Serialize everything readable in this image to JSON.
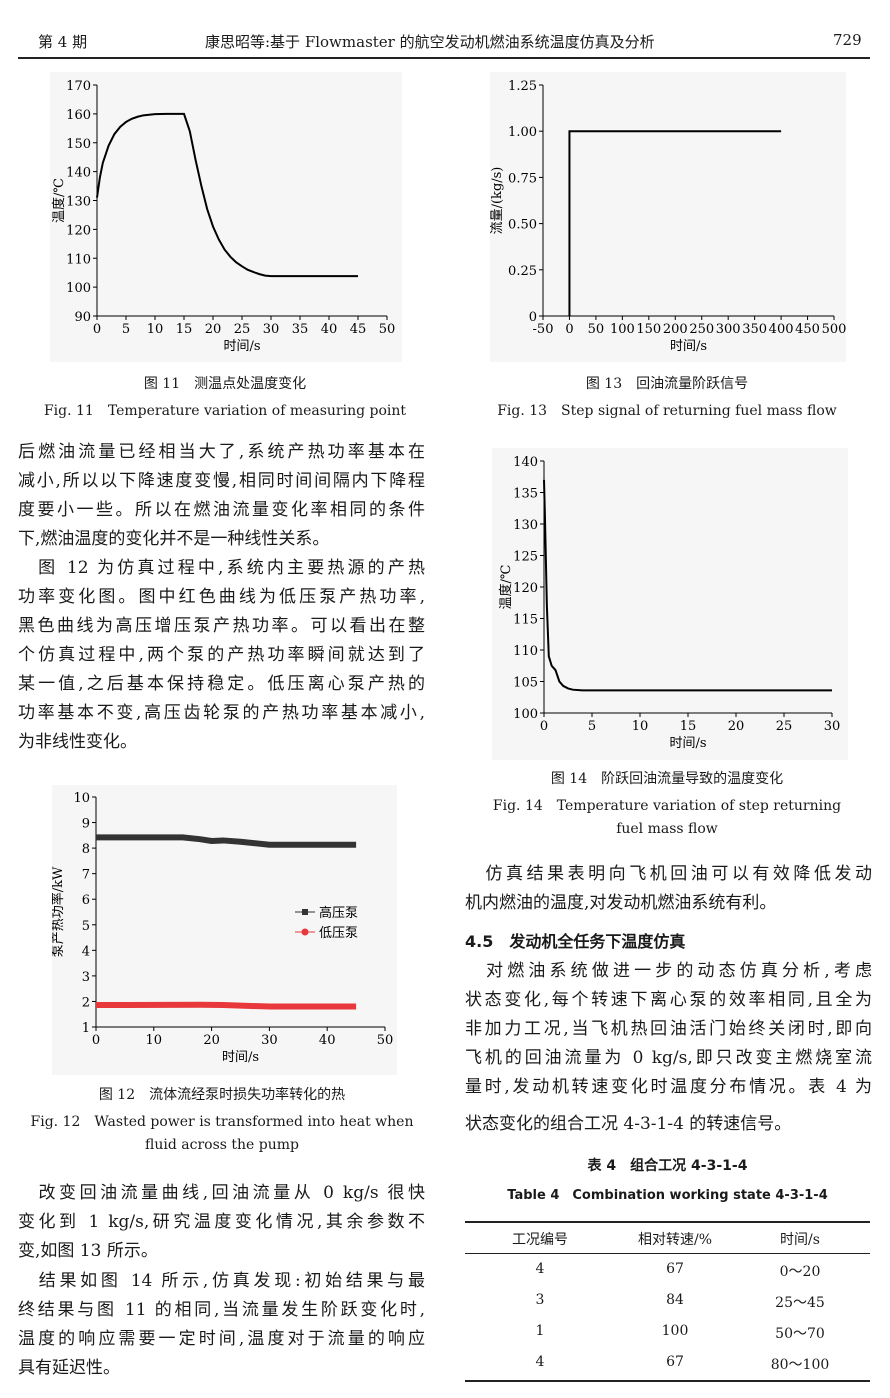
{
  "header": {
    "issue": "第 4 期",
    "title": "康思昭等:基于 Flowmaster 的航空发动机燃油系统温度仿真及分析",
    "page": "729"
  },
  "figures": {
    "fig11": {
      "cap_cn": "图 11　测温点处温度变化",
      "cap_en": "Fig. 11　Temperature variation of measuring point"
    },
    "fig13": {
      "cap_cn": "图 13　回油流量阶跃信号",
      "cap_en": "Fig. 13　Step signal of returning fuel mass flow"
    },
    "fig14": {
      "cap_cn": "图 14　阶跃回油流量导致的温度变化",
      "cap_en1": "Fig. 14　Temperature variation of step returning",
      "cap_en2": "fuel mass flow"
    },
    "fig12": {
      "cap_cn": "图 12　流体流经泵时损失功率转化的热",
      "cap_en1": "Fig. 12　Wasted power is transformed into heat when",
      "cap_en2": "fluid across the pump"
    }
  },
  "left_text1": [
    "后燃油流量已经相当大了,系统产热功率基本在",
    "减小,所以以下降速度变慢,相同时间间隔内下降程",
    "度要小一些。所以在燃油流量变化率相同的条件",
    "下,燃油温度的变化并不是一种线性关系。",
    "　图 12 为仿真过程中,系统内主要热源的产热",
    "功率变化图。图中红色曲线为低压泵产热功率,",
    "黑色曲线为高压增压泵产热功率。可以看出在整",
    "个仿真过程中,两个泵的产热功率瞬间就达到了",
    "某一值,之后基本保持稳定。低压离心泵产热的",
    "功率基本不变,高压齿轮泵的产热功率基本减小,",
    "为非线性变化。"
  ],
  "left_text2": [
    "　改变回油流量曲线,回油流量从 0 kg/s 很快",
    "变化到 1 kg/s,研究温度变化情况,其余参数不",
    "变,如图 13 所示。",
    "　结果如图 14 所示,仿真发现:初始结果与最",
    "终结果与图 11 的相同,当流量发生阶跃变化时,",
    "温度的响应需要一定时间,温度对于流量的响应",
    "具有延迟性。"
  ],
  "right_text1": [
    "　仿真结果表明向飞机回油可以有效降低发动",
    "机内燃油的温度,对发动机燃油系统有利。"
  ],
  "section_heading": "4.5　发动机全任务下温度仿真",
  "right_text2": [
    "　对燃油系统做进一步的动态仿真分析,考虑",
    "状态变化,每个转速下离心泵的效率相同,且全为",
    "非加力工况,当飞机热回油活门始终关闭时,即向",
    "飞机的回油流量为 0 kg/s,即只改变主燃烧室流",
    "量时,发动机转速变化时温度分布情况。表 4 为",
    "状态变化的组合工况 4-3-1-4 的转速信号。"
  ],
  "table": {
    "cap_cn": "表 4　组合工况 4-3-1-4",
    "cap_en": "Table 4　Combination working state 4-3-1-4",
    "headers": [
      "工况编号",
      "相对转速/%",
      "时间/s"
    ],
    "rows": [
      [
        "4",
        "67",
        "0～20"
      ],
      [
        "3",
        "84",
        "25～45"
      ],
      [
        "1",
        "100",
        "50～70"
      ],
      [
        "4",
        "67",
        "80～100"
      ]
    ]
  },
  "chart_data": [
    {
      "id": "fig11",
      "type": "line",
      "xlabel": "时间/s",
      "ylabel": "温度/℃",
      "xlim": [
        0,
        50
      ],
      "ylim": [
        90,
        170
      ],
      "xticks": [
        0,
        5,
        10,
        15,
        20,
        25,
        30,
        35,
        40,
        45,
        50
      ],
      "yticks": [
        90,
        100,
        110,
        120,
        130,
        140,
        150,
        160,
        170
      ],
      "series": [
        {
          "color": "#000000",
          "x": [
            0,
            0.5,
            1,
            2,
            3,
            4,
            5,
            6,
            7,
            8,
            10,
            12,
            15,
            16,
            17,
            18,
            19,
            20,
            21,
            22,
            23,
            24,
            25,
            26,
            27,
            28,
            29,
            30,
            35,
            40,
            45
          ],
          "y": [
            131,
            138,
            143,
            149,
            153,
            155.5,
            157.2,
            158.3,
            159,
            159.5,
            159.9,
            160,
            160,
            154,
            144,
            135,
            127,
            121,
            116.5,
            113,
            110.5,
            108.6,
            107.2,
            106,
            105.2,
            104.5,
            104,
            103.8,
            103.8,
            103.8,
            103.8
          ]
        }
      ]
    },
    {
      "id": "fig13",
      "type": "line",
      "xlabel": "时间/s",
      "ylabel": "流量/(kg/s)",
      "xlim": [
        -50,
        500
      ],
      "ylim": [
        0,
        1.25
      ],
      "xticks": [
        -50,
        0,
        50,
        100,
        150,
        200,
        250,
        300,
        350,
        400,
        450,
        500
      ],
      "yticks": [
        0,
        0.25,
        0.5,
        0.75,
        1.0,
        1.25
      ],
      "ytick_labels": [
        "0",
        "0.25",
        "0.50",
        "0.75",
        "1.00",
        "1.25"
      ],
      "series": [
        {
          "color": "#000000",
          "x": [
            0,
            0,
            400
          ],
          "y": [
            0,
            1,
            1
          ]
        }
      ]
    },
    {
      "id": "fig14",
      "type": "line",
      "xlabel": "时间/s",
      "ylabel": "温度/℃",
      "xlim": [
        0,
        30
      ],
      "ylim": [
        100,
        140
      ],
      "xticks": [
        0,
        5,
        10,
        15,
        20,
        25,
        30
      ],
      "yticks": [
        100,
        105,
        110,
        115,
        120,
        125,
        130,
        135,
        140
      ],
      "series": [
        {
          "color": "#000000",
          "x": [
            0,
            0.1,
            0.3,
            0.5,
            0.8,
            1.2,
            1.6,
            2,
            2.5,
            3,
            4,
            30
          ],
          "y": [
            137,
            131,
            117,
            109,
            107.5,
            106.8,
            105,
            104.3,
            103.9,
            103.7,
            103.6,
            103.6
          ]
        }
      ]
    },
    {
      "id": "fig12",
      "type": "line",
      "xlabel": "时间/s",
      "ylabel": "泵产热功率/kW",
      "xlim": [
        0,
        50
      ],
      "ylim": [
        1,
        10
      ],
      "xticks": [
        0,
        10,
        20,
        30,
        40,
        50
      ],
      "yticks": [
        1,
        2,
        3,
        4,
        5,
        6,
        7,
        8,
        9,
        10
      ],
      "legend": "center-right",
      "series": [
        {
          "name": "高压泵",
          "color": "#333333",
          "x": [
            0,
            15,
            18,
            20,
            22,
            25,
            30,
            45
          ],
          "y": [
            8.42,
            8.42,
            8.35,
            8.28,
            8.3,
            8.25,
            8.13,
            8.13
          ]
        },
        {
          "name": "低压泵",
          "color": "#e8383b",
          "x": [
            0,
            18,
            22,
            30,
            45
          ],
          "y": [
            1.86,
            1.87,
            1.86,
            1.8,
            1.8
          ]
        }
      ]
    }
  ]
}
